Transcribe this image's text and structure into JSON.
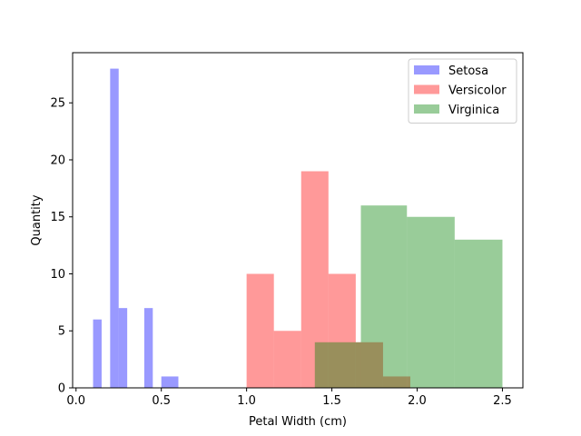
{
  "chart_data": {
    "type": "bar",
    "title": "",
    "xlabel": "Petal Width (cm)",
    "ylabel": "Quantity",
    "xlim": [
      -0.02,
      2.62
    ],
    "ylim": [
      0,
      29.4
    ],
    "xticks": [
      0.0,
      0.5,
      1.0,
      1.5,
      2.0,
      2.5
    ],
    "xtick_labels": [
      "0.0",
      "0.5",
      "1.0",
      "1.5",
      "2.0",
      "2.5"
    ],
    "yticks": [
      0,
      5,
      10,
      15,
      20,
      25
    ],
    "ytick_labels": [
      "0",
      "5",
      "10",
      "15",
      "20",
      "25"
    ],
    "grid": false,
    "legend_position": "top-right",
    "series": [
      {
        "name": "Setosa",
        "color": "#0000ff",
        "bins": [
          {
            "x0": 0.1,
            "x1": 0.15,
            "value": 6
          },
          {
            "x0": 0.2,
            "x1": 0.25,
            "value": 28
          },
          {
            "x0": 0.25,
            "x1": 0.3,
            "value": 7
          },
          {
            "x0": 0.4,
            "x1": 0.45,
            "value": 7
          },
          {
            "x0": 0.5,
            "x1": 0.6,
            "value": 1
          }
        ]
      },
      {
        "name": "Versicolor",
        "color": "#ff0000",
        "bins": [
          {
            "x0": 1.0,
            "x1": 1.16,
            "value": 10
          },
          {
            "x0": 1.16,
            "x1": 1.32,
            "value": 5
          },
          {
            "x0": 1.32,
            "x1": 1.48,
            "value": 19
          },
          {
            "x0": 1.48,
            "x1": 1.64,
            "value": 10
          },
          {
            "x0": 1.64,
            "x1": 1.8,
            "value": 4
          },
          {
            "x0": 1.8,
            "x1": 1.96,
            "value": 1
          }
        ]
      },
      {
        "name": "Virginica",
        "color": "#008000",
        "bins": [
          {
            "x0": 1.4,
            "x1": 1.67,
            "value": 4
          },
          {
            "x0": 1.67,
            "x1": 1.94,
            "value": 16
          },
          {
            "x0": 1.94,
            "x1": 2.22,
            "value": 15
          },
          {
            "x0": 2.22,
            "x1": 2.5,
            "value": 13
          }
        ]
      }
    ]
  }
}
